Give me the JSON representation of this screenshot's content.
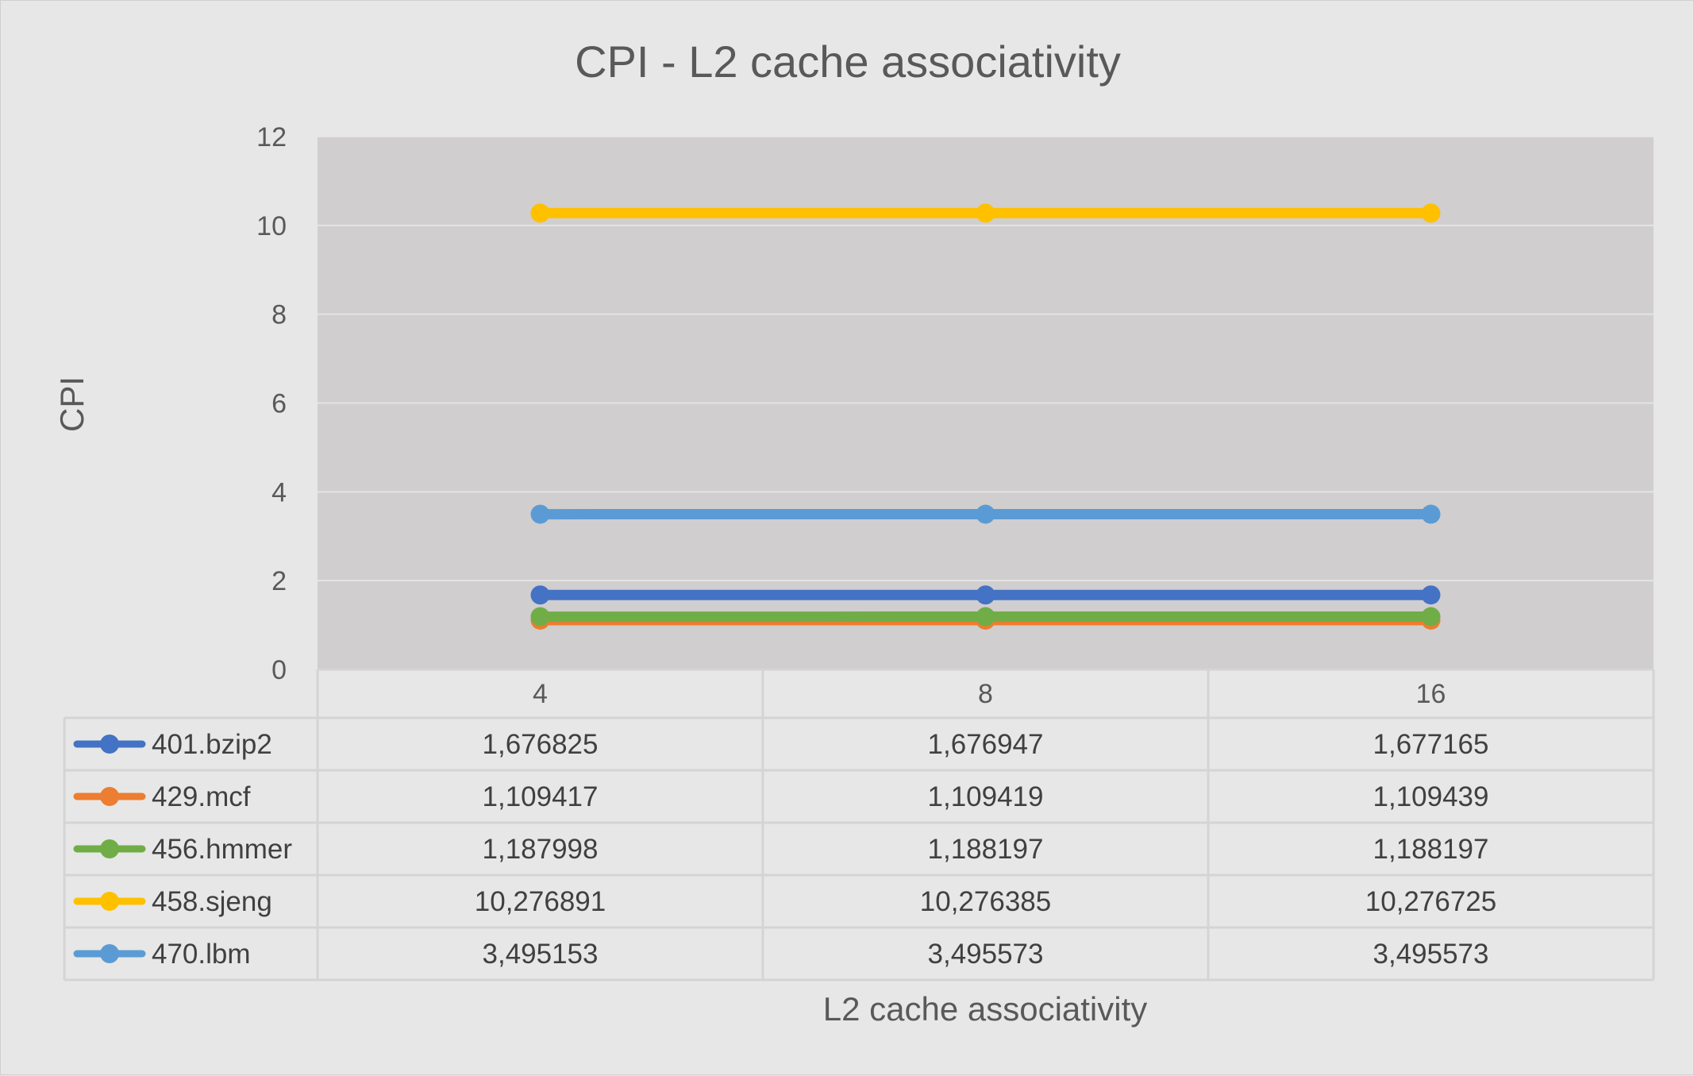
{
  "chart_data": {
    "type": "line",
    "title": "CPI - L2 cache associativity",
    "xlabel": "L2 cache associativity",
    "ylabel": "CPI",
    "categories": [
      "4",
      "8",
      "16"
    ],
    "ylim": [
      0,
      12
    ],
    "yticks": [
      0,
      2,
      4,
      6,
      8,
      10,
      12
    ],
    "grid": true,
    "legend": "data-table",
    "series": [
      {
        "name": "401.bzip2",
        "color": "#4472c4",
        "values": [
          1.676825,
          1.676947,
          1.677165
        ],
        "labels": [
          "1,676825",
          "1,676947",
          "1,677165"
        ]
      },
      {
        "name": "429.mcf",
        "color": "#ed7d31",
        "values": [
          1.109417,
          1.109419,
          1.109439
        ],
        "labels": [
          "1,109417",
          "1,109419",
          "1,109439"
        ]
      },
      {
        "name": "456.hmmer",
        "color": "#70ad47",
        "values": [
          1.187998,
          1.188197,
          1.188197
        ],
        "labels": [
          "1,187998",
          "1,188197",
          "1,188197"
        ]
      },
      {
        "name": "458.sjeng",
        "color": "#ffc000",
        "values": [
          10.276891,
          10.276385,
          10.276725
        ],
        "labels": [
          "10,276891",
          "10,276385",
          "10,276725"
        ]
      },
      {
        "name": "470.lbm",
        "color": "#5b9bd5",
        "values": [
          3.495153,
          3.495573,
          3.495573
        ],
        "labels": [
          "3,495153",
          "3,495573",
          "3,495573"
        ]
      }
    ]
  }
}
